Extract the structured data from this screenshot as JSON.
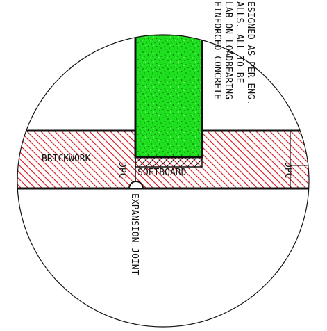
{
  "detail": {
    "note_lines": [
      "EINFORCED CONCRETE",
      "LAB ON LOADBEARING",
      "ALLS. ALL TO BE",
      "ESIGNED AS PER ENG."
    ],
    "labels": {
      "brickwork": "BRICKWORK",
      "softboard": "SOFTBOARD",
      "dpc_left": "DPC",
      "dpc_right": "DPC",
      "expansion_joint": "EXPANSION JOINT"
    },
    "colors": {
      "hatch": "#d9262b",
      "concrete_fill": "#1fe01f",
      "line": "#111111",
      "background": "#ffffff"
    }
  }
}
